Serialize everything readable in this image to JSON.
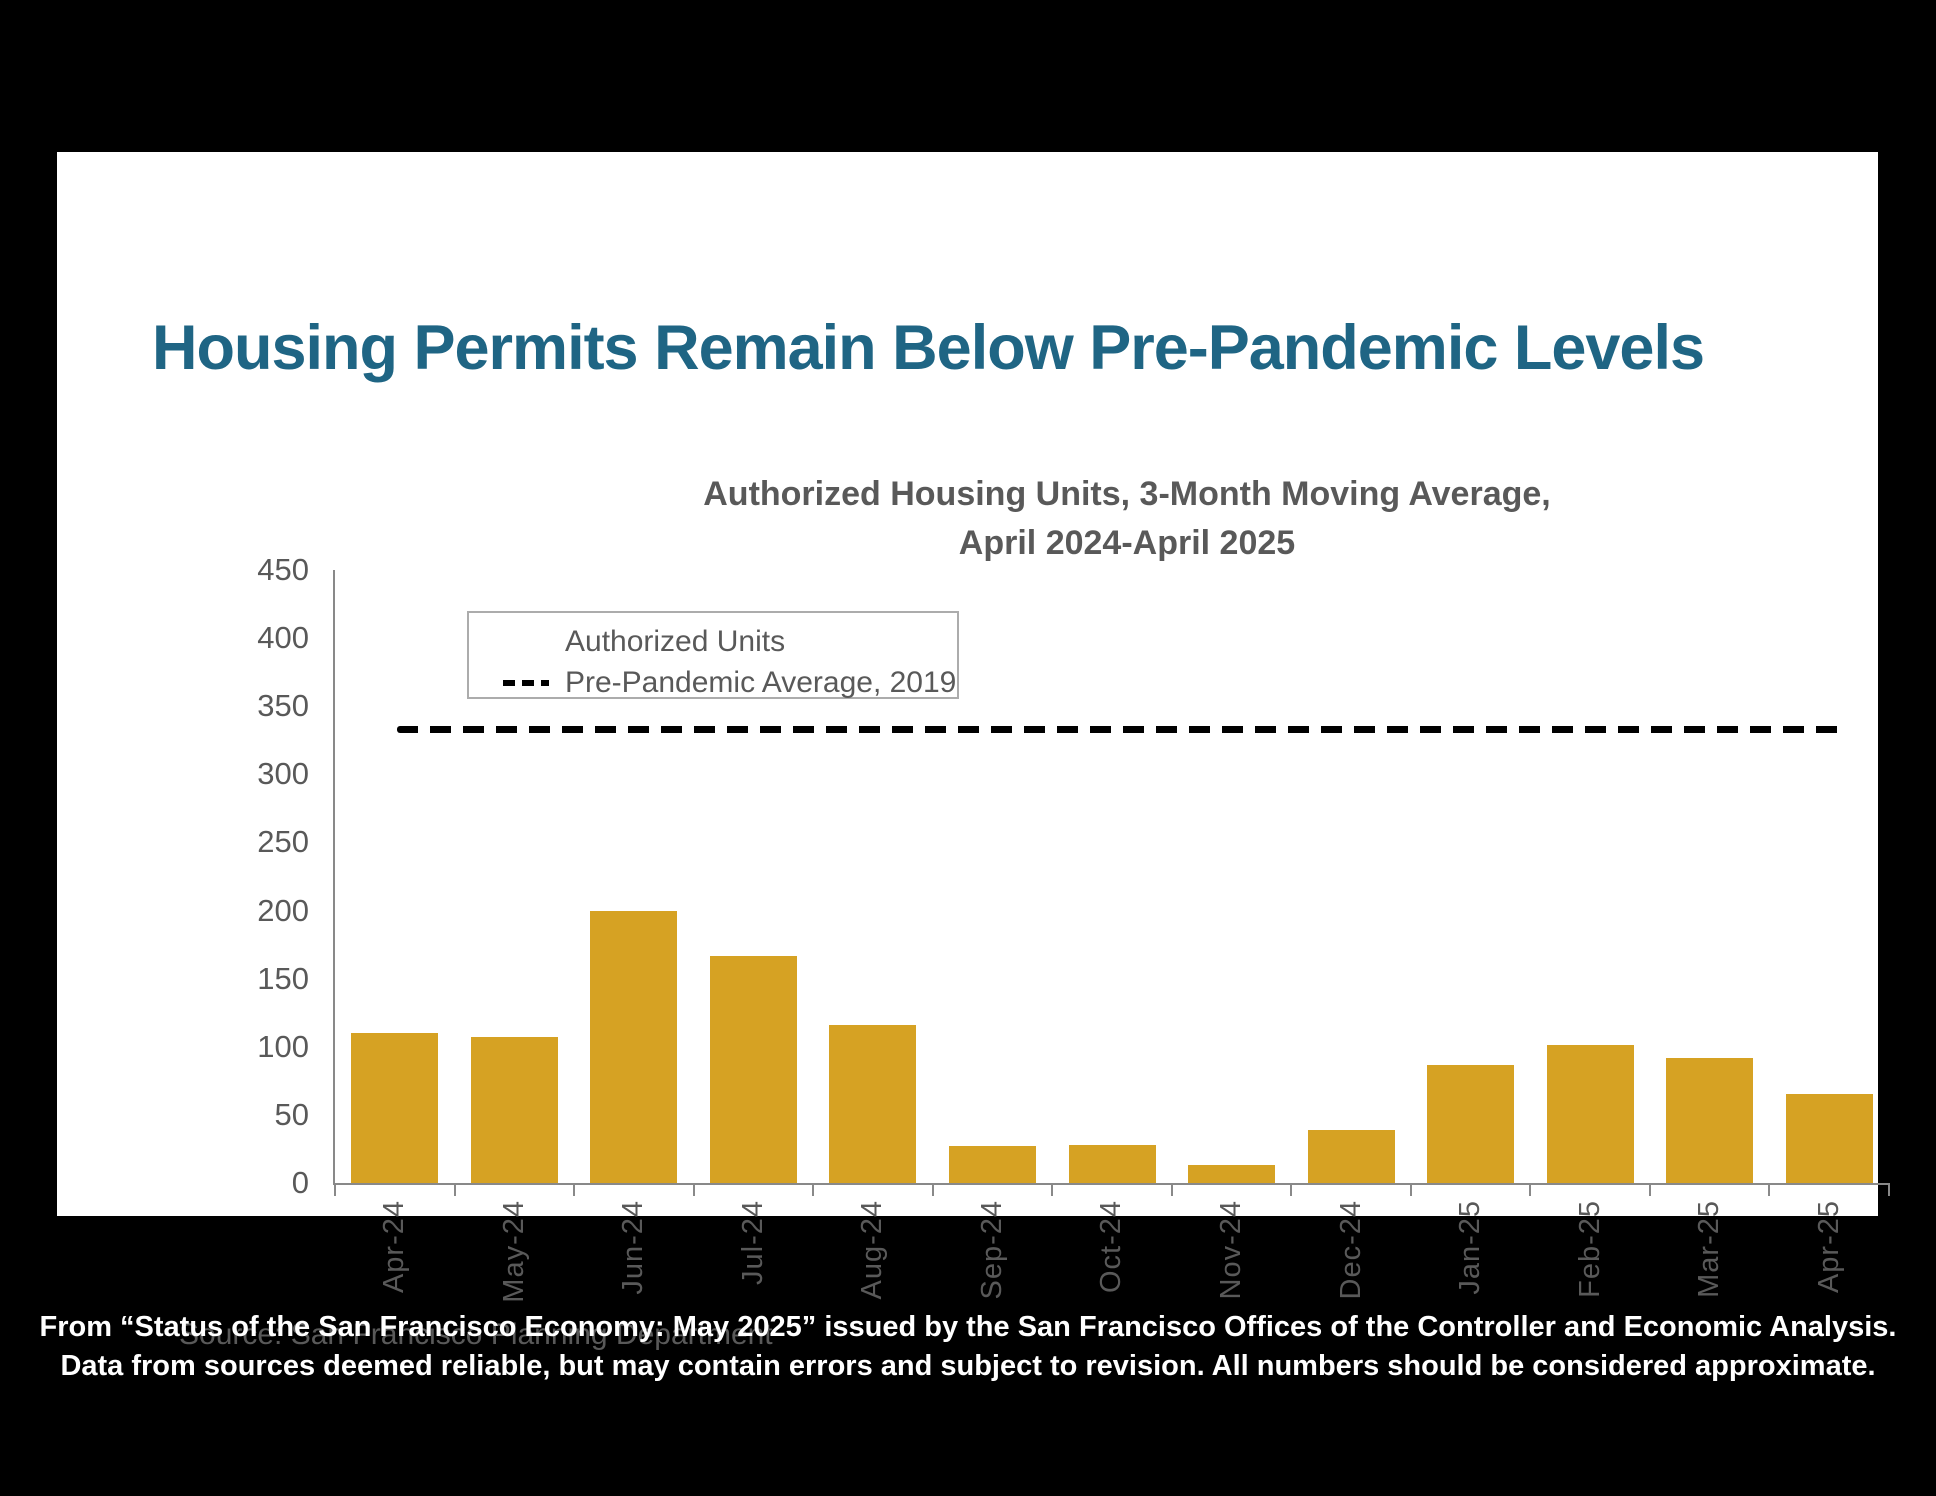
{
  "page_title": "Housing Permits Remain Below Pre-Pandemic Levels",
  "source_note": "Source: San Francisco Planning Department",
  "footer": {
    "line1": "From “Status of the San Francisco Economy: May 2025” issued by the San Francisco Offices of the Controller and Economic Analysis.",
    "line2": "Data from sources deemed reliable, but may contain errors and subject to revision. All numbers should be considered approximate."
  },
  "colors": {
    "title_teal": "#1F6584",
    "bar_gold": "#D6A223",
    "axis_gray": "#898989",
    "text_gray": "#595959",
    "reference_black": "#000000",
    "card_background": "#FFFFFF",
    "page_background": "#000000"
  },
  "chart_data": {
    "type": "bar",
    "title": "Authorized Housing Units, 3-Month Moving Average, April 2024-April 2025",
    "title_lines": [
      "Authorized Housing Units, 3-Month Moving Average,",
      "April 2024-April 2025"
    ],
    "categories": [
      "Apr-24",
      "May-24",
      "Jun-24",
      "Jul-24",
      "Aug-24",
      "Sep-24",
      "Oct-24",
      "Nov-24",
      "Dec-24",
      "Jan-25",
      "Feb-25",
      "Mar-25",
      "Apr-25"
    ],
    "values": [
      110,
      107,
      200,
      167,
      116,
      27,
      28,
      13,
      39,
      87,
      101,
      92,
      65
    ],
    "series_label": "Authorized Units",
    "reference_line": {
      "label": "Pre-Pandemic Average, 2019",
      "value": 333
    },
    "xlabel": "",
    "ylabel": "",
    "ylim": [
      0,
      450
    ],
    "yticks": [
      0,
      50,
      100,
      150,
      200,
      250,
      300,
      350,
      400,
      450
    ],
    "grid": false,
    "legend_position": "top-left",
    "bar_color": "#D6A223",
    "reference_line_color": "#000000"
  }
}
